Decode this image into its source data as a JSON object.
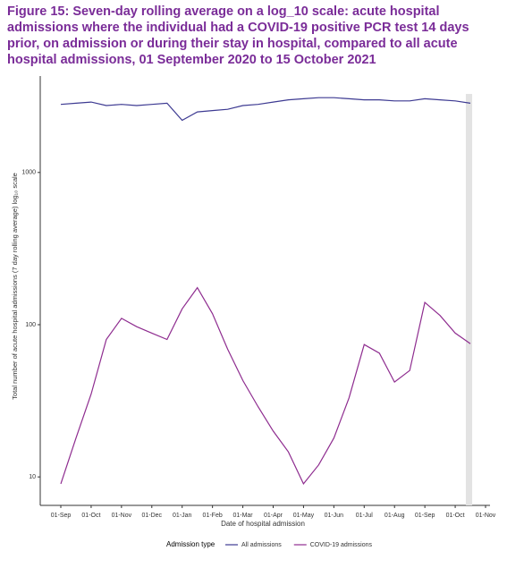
{
  "chart_data": {
    "type": "line",
    "title": "Figure 15: Seven-day rolling average on a log_10 scale: acute hospital admissions where the individual had a COVID-19 positive PCR test 14 days prior, on admission or during their stay in hospital, compared to all acute hospital admissions, 01 September 2020 to 15 October 2021",
    "x_label": "Date of hospital admission",
    "y_label": "Total number of acute hospital admissions (7 day rolling average) log₁₀ scale",
    "legend_title": "Admission type",
    "categories": [
      "01-Sep",
      null,
      "01-Oct",
      null,
      "01-Nov",
      null,
      "01-Dec",
      null,
      "01-Jan",
      null,
      "01-Feb",
      null,
      "01-Mar",
      null,
      "01-Apr",
      null,
      "01-May",
      null,
      "01-Jun",
      null,
      "01-Jul",
      null,
      "01-Aug",
      null,
      "01-Sep",
      null,
      "01-Oct",
      null,
      "01-Nov"
    ],
    "series": [
      {
        "name": "All admissions",
        "color": "#3d3a92",
        "values": [
          2800,
          2850,
          2900,
          2750,
          2800,
          2750,
          2800,
          2850,
          2200,
          2500,
          2550,
          2600,
          2750,
          2800,
          2900,
          3000,
          3050,
          3100,
          3100,
          3050,
          3000,
          3000,
          2950,
          2950,
          3050,
          3000,
          2950,
          2850,
          null
        ]
      },
      {
        "name": "COVID-19 admissions",
        "color": "#8e2c8f",
        "values": [
          9,
          18,
          35,
          80,
          110,
          97,
          88,
          80,
          127,
          175,
          118,
          69,
          43,
          29,
          20,
          14.6,
          9,
          12,
          18,
          33,
          74,
          65,
          42,
          50,
          140,
          115,
          88,
          75,
          null
        ]
      }
    ],
    "log_scale": true,
    "ylim": [
      6.5,
      4300
    ],
    "yticks": [
      10,
      100,
      1000
    ],
    "legend_position": "bottom"
  }
}
